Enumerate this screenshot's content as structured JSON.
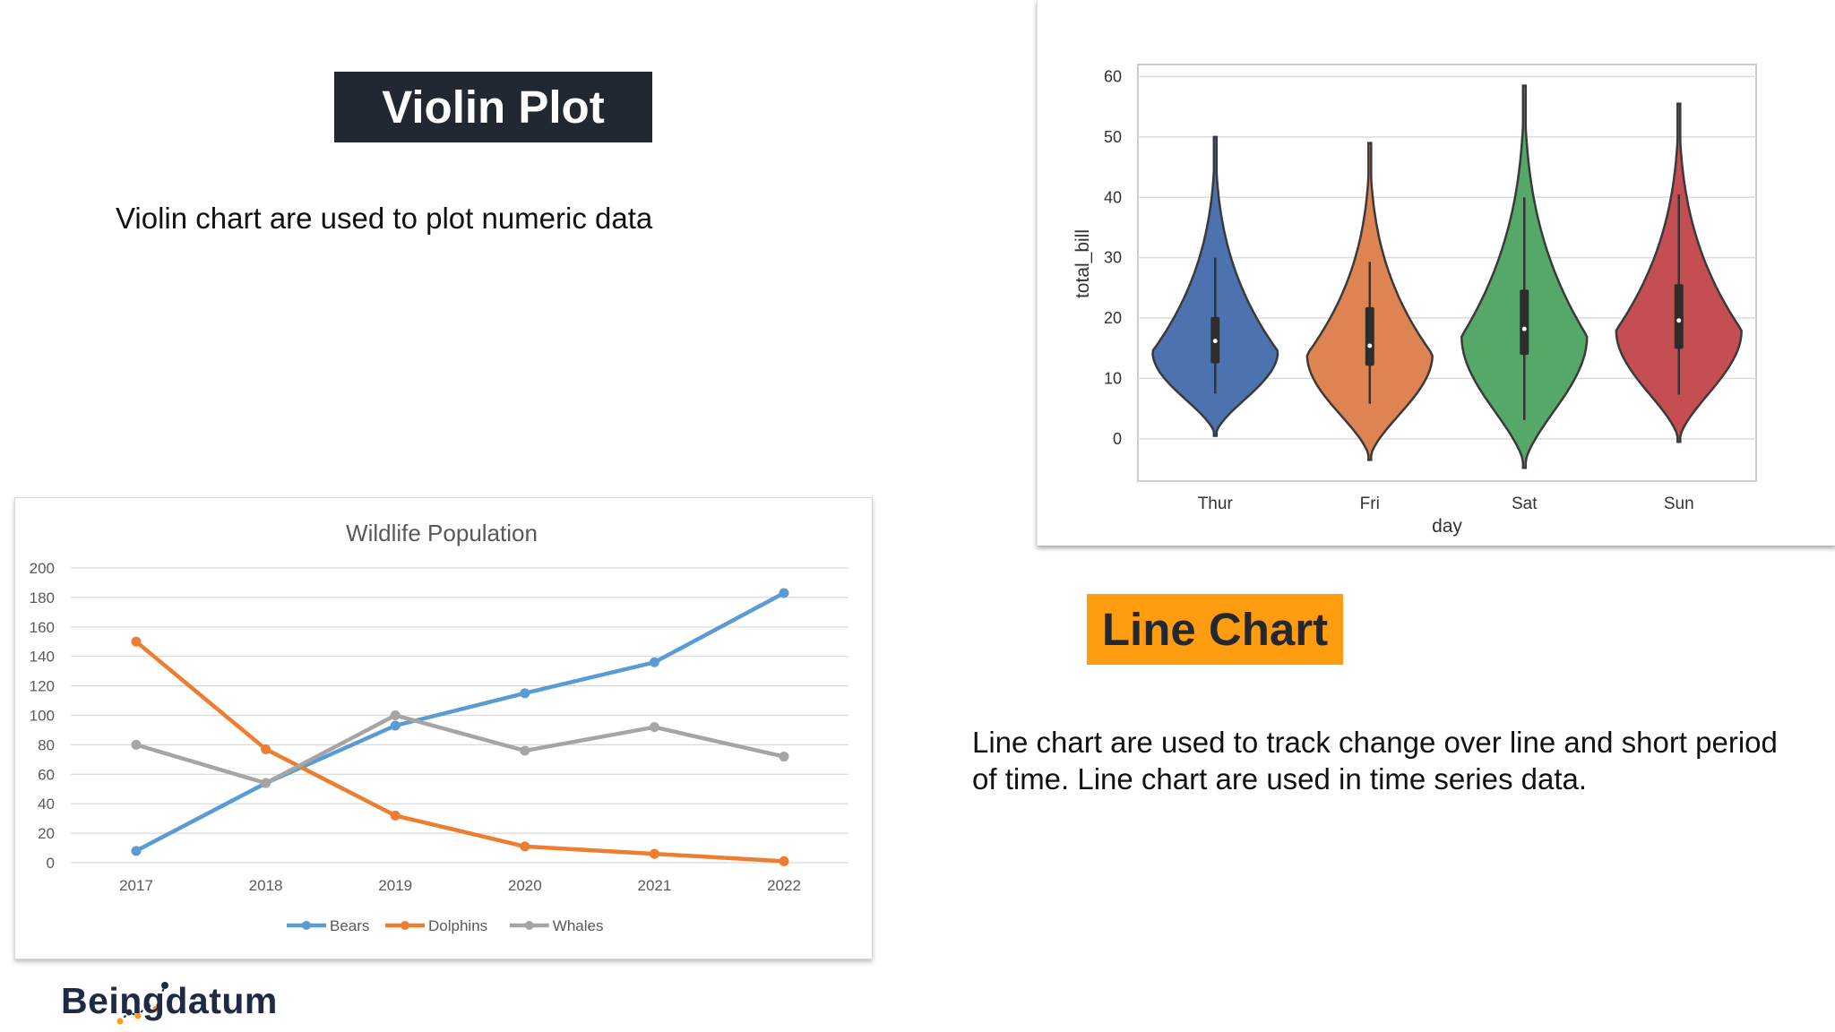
{
  "slide": {
    "violin_title": "Violin Plot",
    "violin_desc": "Violin chart are used to plot numeric data",
    "line_title": "Line Chart",
    "line_desc": "Line chart are used to track change over line and short period of time. Line chart are used in time series data.",
    "brand": "Beingdatum",
    "colors": {
      "dark": "#222831",
      "orange": "#ff9c0f"
    }
  },
  "chart_data": [
    {
      "type": "violin",
      "title": "",
      "xlabel": "day",
      "ylabel": "total_bill",
      "ylim": [
        -7,
        62
      ],
      "yticks": [
        0,
        10,
        20,
        30,
        40,
        50,
        60
      ],
      "grid": true,
      "categories": [
        "Thur",
        "Fri",
        "Sat",
        "Sun"
      ],
      "colors": [
        "#4c72b0",
        "#dd8452",
        "#55a868",
        "#c44e52"
      ],
      "distributions": [
        {
          "min": 0.5,
          "max": 50,
          "q1": 12.5,
          "median": 16.2,
          "q3": 20.2,
          "whisker_low": 7.5,
          "whisker_high": 30,
          "peak": 14.5
        },
        {
          "min": -3.5,
          "max": 49,
          "q1": 12.1,
          "median": 15.4,
          "q3": 21.8,
          "whisker_low": 5.8,
          "whisker_high": 29.3,
          "peak": 14
        },
        {
          "min": -4.8,
          "max": 58.5,
          "q1": 13.9,
          "median": 18.2,
          "q3": 24.7,
          "whisker_low": 3.1,
          "whisker_high": 40,
          "peak": 17
        },
        {
          "min": -0.5,
          "max": 55.5,
          "q1": 14.9,
          "median": 19.6,
          "q3": 25.6,
          "whisker_low": 7.3,
          "whisker_high": 40.5,
          "peak": 18
        }
      ]
    },
    {
      "type": "line",
      "title": "Wildlife Population",
      "xlabel": "",
      "ylabel": "",
      "ylim": [
        0,
        200
      ],
      "yticks": [
        0,
        20,
        40,
        60,
        80,
        100,
        120,
        140,
        160,
        180,
        200
      ],
      "grid": true,
      "legend": "bottom",
      "x": [
        "2017",
        "2018",
        "2019",
        "2020",
        "2021",
        "2022"
      ],
      "series": [
        {
          "name": "Bears",
          "color": "#5b9bd5",
          "values": [
            8,
            54,
            93,
            115,
            136,
            183
          ]
        },
        {
          "name": "Dolphins",
          "color": "#ed7d31",
          "values": [
            150,
            77,
            32,
            11,
            6,
            1
          ]
        },
        {
          "name": "Whales",
          "color": "#a5a5a5",
          "values": [
            80,
            54,
            100,
            76,
            92,
            72
          ]
        }
      ]
    }
  ]
}
